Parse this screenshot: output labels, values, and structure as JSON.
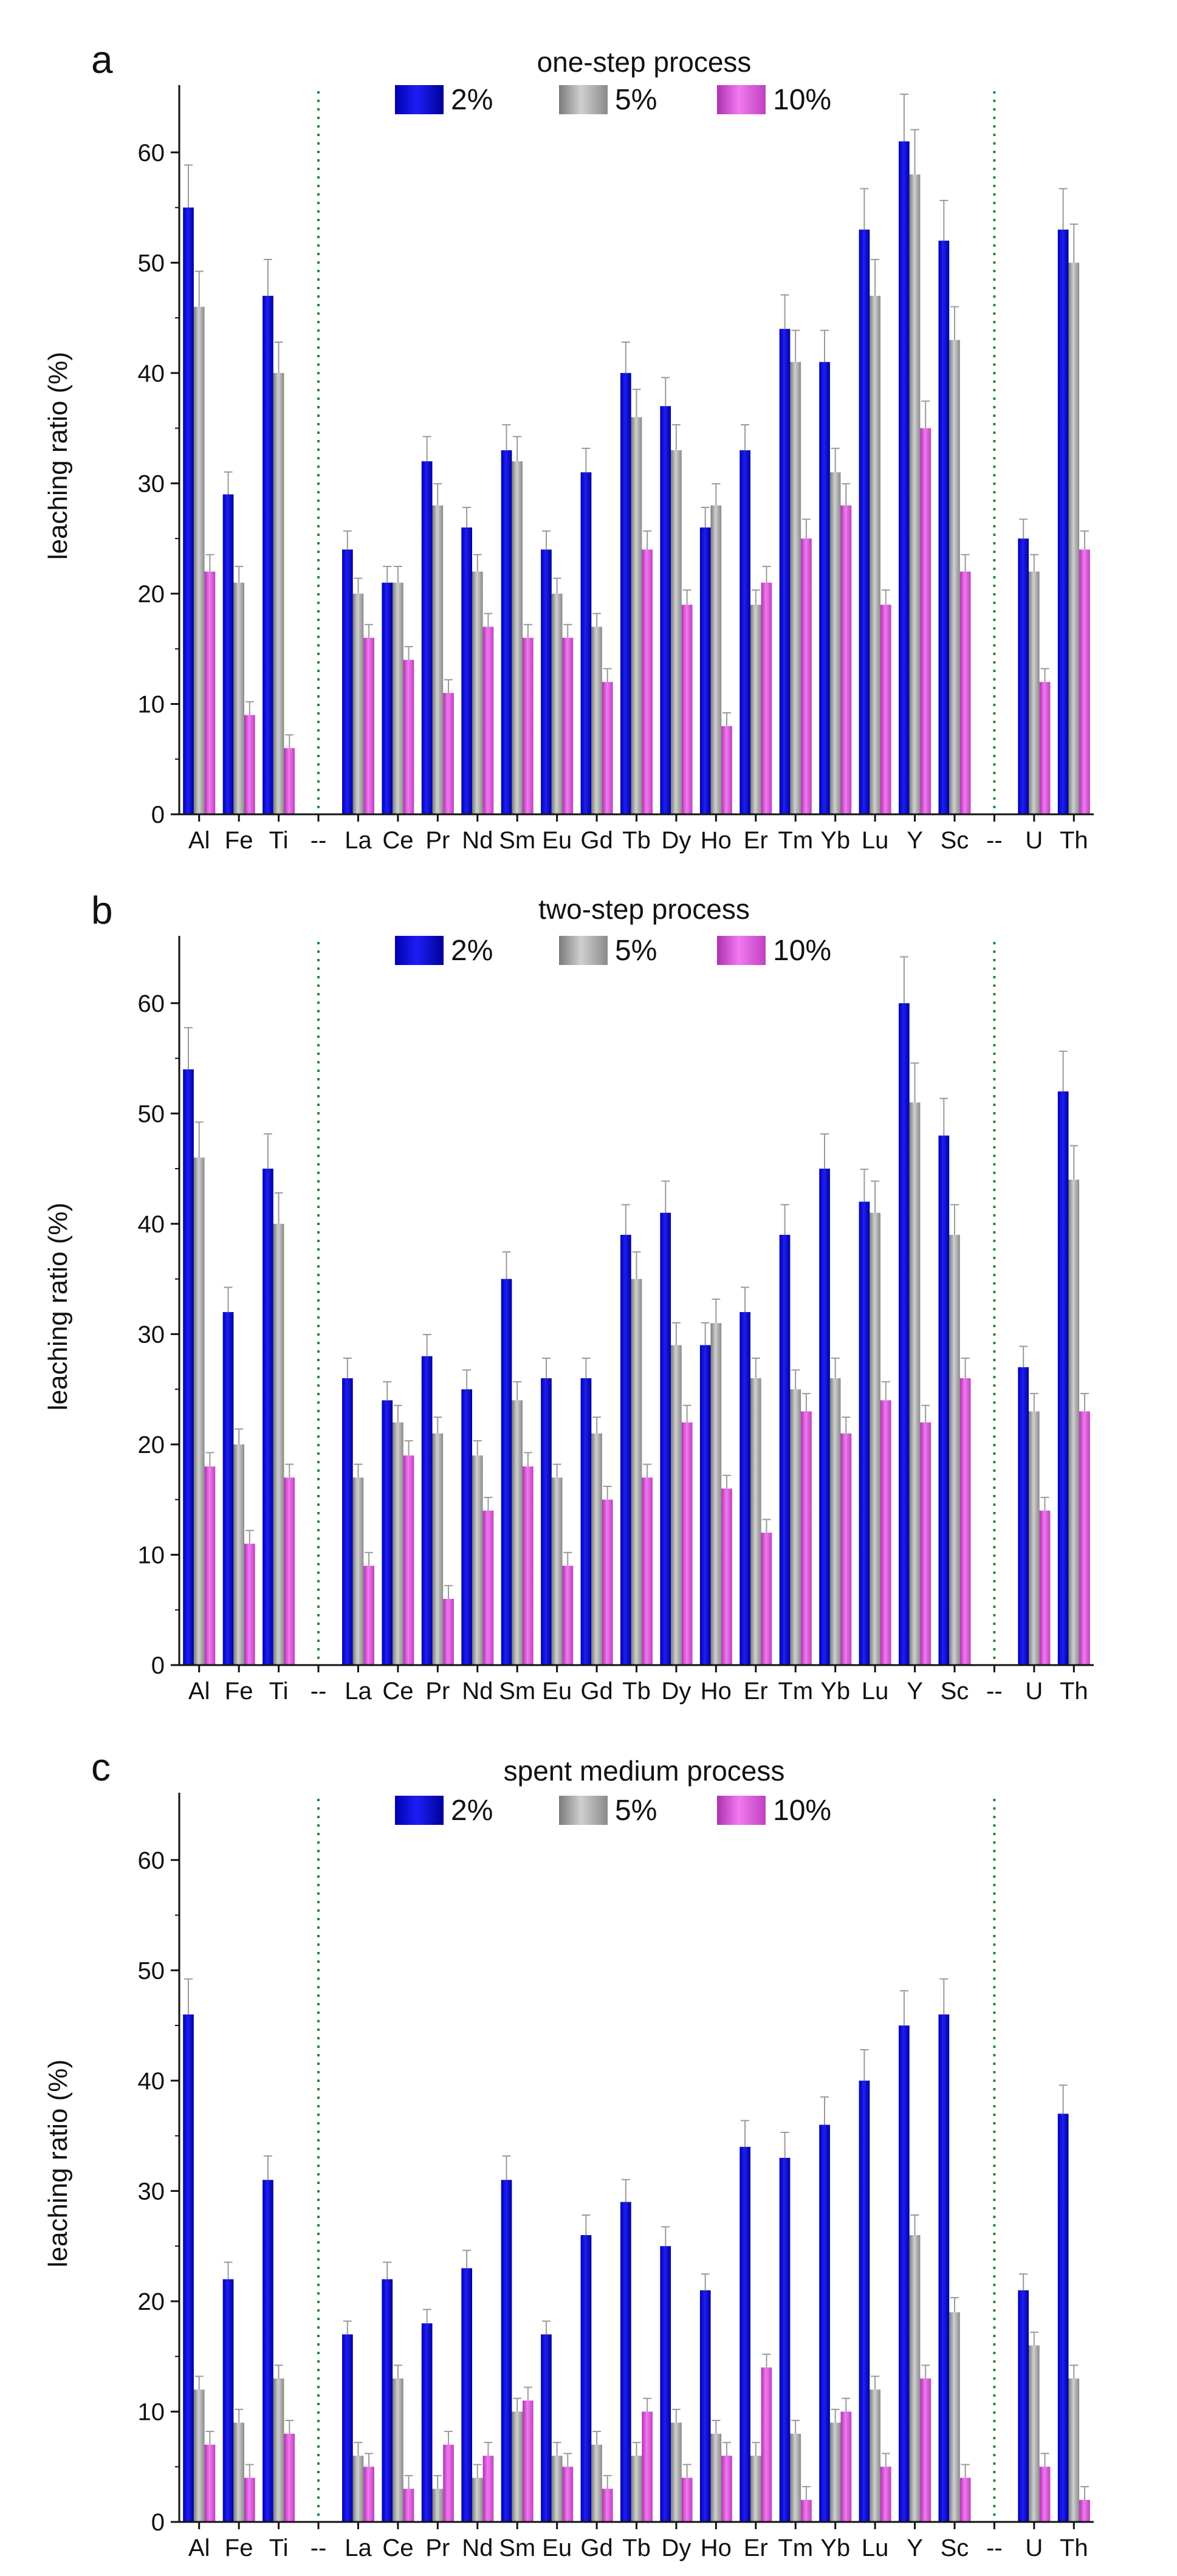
{
  "figure": {
    "description": "Three-panel grouped bar chart of leaching ratios"
  },
  "colors": {
    "series_2pct": "#0a0ad8",
    "series_5pct": "#a8a8a8",
    "series_10pct": "#e055e0",
    "separator": "#1f8a3a",
    "axis": "#111111"
  },
  "chart_data": [
    {
      "type": "bar",
      "panel_letter": "a",
      "title": "one-step process",
      "ylabel": "leaching ratio (%)",
      "xlabel": "",
      "ylim": [
        0,
        65
      ],
      "yticks": [
        0,
        10,
        20,
        30,
        40,
        50,
        60
      ],
      "grid": false,
      "legend": "top-center",
      "separators_after": [
        "--"
      ],
      "categories": [
        "Al",
        "Fe",
        "Ti",
        "--",
        "La",
        "Ce",
        "Pr",
        "Nd",
        "Sm",
        "Eu",
        "Gd",
        "Tb",
        "Dy",
        "Ho",
        "Er",
        "Tm",
        "Yb",
        "Lu",
        "Y",
        "Sc",
        "--",
        "U",
        "Th"
      ],
      "series": [
        {
          "name": "2%",
          "values": [
            55,
            29,
            47,
            null,
            24,
            21,
            32,
            26,
            33,
            24,
            31,
            40,
            37,
            26,
            33,
            44,
            41,
            53,
            61,
            52,
            null,
            25,
            53
          ]
        },
        {
          "name": "5%",
          "values": [
            46,
            21,
            40,
            null,
            20,
            21,
            28,
            22,
            32,
            20,
            17,
            36,
            33,
            28,
            19,
            41,
            31,
            47,
            58,
            43,
            null,
            22,
            50
          ]
        },
        {
          "name": "10%",
          "values": [
            22,
            9,
            6,
            null,
            16,
            14,
            11,
            17,
            16,
            16,
            12,
            24,
            19,
            8,
            21,
            25,
            28,
            19,
            35,
            22,
            null,
            12,
            24
          ]
        }
      ]
    },
    {
      "type": "bar",
      "panel_letter": "b",
      "title": "two-step process",
      "ylabel": "leaching ratio (%)",
      "xlabel": "",
      "ylim": [
        0,
        65
      ],
      "yticks": [
        0,
        10,
        20,
        30,
        40,
        50,
        60
      ],
      "grid": false,
      "legend": "top-center",
      "categories": [
        "Al",
        "Fe",
        "Ti",
        "--",
        "La",
        "Ce",
        "Pr",
        "Nd",
        "Sm",
        "Eu",
        "Gd",
        "Tb",
        "Dy",
        "Ho",
        "Er",
        "Tm",
        "Yb",
        "Lu",
        "Y",
        "Sc",
        "--",
        "U",
        "Th"
      ],
      "series": [
        {
          "name": "2%",
          "values": [
            54,
            32,
            45,
            null,
            26,
            24,
            28,
            25,
            35,
            26,
            26,
            39,
            41,
            29,
            32,
            39,
            45,
            42,
            60,
            48,
            null,
            27,
            52
          ]
        },
        {
          "name": "5%",
          "values": [
            46,
            20,
            40,
            null,
            17,
            22,
            21,
            19,
            24,
            17,
            21,
            35,
            29,
            31,
            26,
            25,
            26,
            41,
            51,
            39,
            null,
            23,
            44
          ]
        },
        {
          "name": "10%",
          "values": [
            18,
            11,
            17,
            null,
            9,
            19,
            6,
            14,
            18,
            9,
            15,
            17,
            22,
            16,
            12,
            23,
            21,
            24,
            22,
            26,
            null,
            14,
            23
          ]
        }
      ]
    },
    {
      "type": "bar",
      "panel_letter": "c",
      "title": "spent medium process",
      "ylabel": "leaching ratio (%)",
      "xlabel": "",
      "ylim": [
        0,
        65
      ],
      "yticks": [
        0,
        10,
        20,
        30,
        40,
        50,
        60
      ],
      "grid": false,
      "legend": "top-center",
      "categories": [
        "Al",
        "Fe",
        "Ti",
        "--",
        "La",
        "Ce",
        "Pr",
        "Nd",
        "Sm",
        "Eu",
        "Gd",
        "Tb",
        "Dy",
        "Ho",
        "Er",
        "Tm",
        "Yb",
        "Lu",
        "Y",
        "Sc",
        "--",
        "U",
        "Th"
      ],
      "series": [
        {
          "name": "2%",
          "values": [
            46,
            22,
            31,
            null,
            17,
            22,
            18,
            23,
            31,
            17,
            26,
            29,
            25,
            21,
            34,
            33,
            36,
            40,
            45,
            46,
            null,
            21,
            37
          ]
        },
        {
          "name": "5%",
          "values": [
            12,
            9,
            13,
            null,
            6,
            13,
            3,
            4,
            10,
            6,
            7,
            6,
            9,
            8,
            6,
            8,
            9,
            12,
            26,
            19,
            null,
            16,
            13
          ]
        },
        {
          "name": "10%",
          "values": [
            7,
            4,
            8,
            null,
            5,
            3,
            7,
            6,
            11,
            5,
            3,
            10,
            4,
            6,
            14,
            2,
            10,
            5,
            13,
            4,
            null,
            5,
            2
          ]
        }
      ]
    }
  ]
}
